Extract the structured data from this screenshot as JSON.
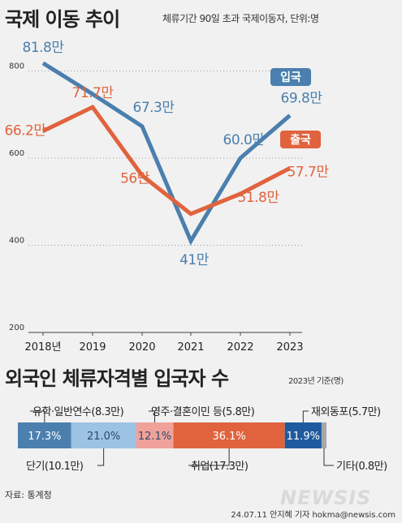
{
  "title": "국제 이동 추이",
  "subtitle": "체류기간 90일 초과 국제이동자, 단위:명",
  "title2": "외국인 체류자격별 입국자 수",
  "subtitle2": "2023년 기준(명)",
  "source": "자료: 통계청",
  "byline": "24.07.11 안지혜 기자 hokma@newsis.com",
  "watermark": "NEWSIS",
  "chart_data": [
    {
      "type": "line",
      "categories": [
        "2018년",
        "2019",
        "2020",
        "2021",
        "2022",
        "2023"
      ],
      "y_ticks": [
        "800",
        "600",
        "400",
        "200"
      ],
      "ylim": [
        200,
        860
      ],
      "series": [
        {
          "name": "입국",
          "color": "#4a7fae",
          "values": [
            818,
            747,
            673,
            410,
            600,
            698
          ],
          "labels": [
            "81.8만",
            "",
            "67.3만",
            "41만",
            "60.0만",
            "69.8만"
          ]
        },
        {
          "name": "출국",
          "color": "#e0633d",
          "values": [
            662,
            717,
            560,
            472,
            518,
            577
          ],
          "labels": [
            "66.2만",
            "71.7만",
            "56만",
            "",
            "51.8만",
            "57.7만"
          ]
        }
      ]
    },
    {
      "type": "bar",
      "stacked": true,
      "orientation": "horizontal",
      "segments": [
        {
          "name": "유학·일반연수",
          "label": "유학·일반연수(8.3만)",
          "value": 17.3,
          "pct": "17.3%",
          "color": "#4a7fae"
        },
        {
          "name": "단기",
          "label": "단기(10.1만)",
          "value": 21.0,
          "pct": "21.0%",
          "color": "#9cc3e4"
        },
        {
          "name": "영주·결혼이민 등",
          "label": "영주·결혼이민 등(5.8만)",
          "value": 12.1,
          "pct": "12.1%",
          "color": "#f0a19a"
        },
        {
          "name": "취업",
          "label": "취업(17.3만)",
          "value": 36.1,
          "pct": "36.1%",
          "color": "#e0633d"
        },
        {
          "name": "재외동포",
          "label": "재외동포(5.7만)",
          "value": 11.9,
          "pct": "11.9%",
          "color": "#1f5a9e"
        },
        {
          "name": "기타",
          "label": "기타(0.8만)",
          "value": 1.6,
          "pct": "",
          "color": "#a8a8a8"
        }
      ]
    }
  ]
}
